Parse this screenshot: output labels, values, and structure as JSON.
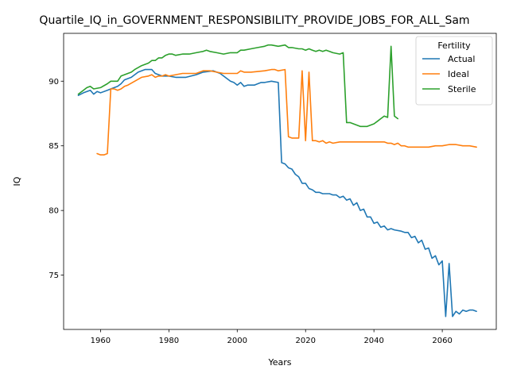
{
  "chart_data": {
    "type": "line",
    "title": "Quartile_IQ_in_GOVERNMENT_RESPONSIBILITY_PROVIDE_JOBS_FOR_ALL_Sam",
    "xlabel": "Years",
    "ylabel": "IQ",
    "xlim": [
      1949.2,
      2075.8
    ],
    "ylim": [
      70.8,
      93.7
    ],
    "x_ticks": [
      "1960",
      "1980",
      "2000",
      "2020",
      "2040",
      "2060"
    ],
    "y_ticks": [
      "75",
      "80",
      "85",
      "90"
    ],
    "x_tick_values": [
      1960,
      1980,
      2000,
      2020,
      2040,
      2060
    ],
    "y_tick_values": [
      75,
      80,
      85,
      90
    ],
    "grid": false,
    "legend": {
      "title": "Fertility",
      "position": "top-right"
    },
    "series": [
      {
        "name": "Actual",
        "color": "#1f77b4",
        "points": [
          [
            1953.5,
            88.9
          ],
          [
            1955,
            89.1
          ],
          [
            1957,
            89.3
          ],
          [
            1958,
            89.0
          ],
          [
            1959,
            89.2
          ],
          [
            1960,
            89.1
          ],
          [
            1962,
            89.3
          ],
          [
            1963,
            89.4
          ],
          [
            1965,
            89.6
          ],
          [
            1966,
            89.8
          ],
          [
            1967,
            90.1
          ],
          [
            1968,
            90.2
          ],
          [
            1969,
            90.3
          ],
          [
            1970,
            90.5
          ],
          [
            1971,
            90.7
          ],
          [
            1972,
            90.8
          ],
          [
            1973,
            90.9
          ],
          [
            1975,
            90.9
          ],
          [
            1976,
            90.6
          ],
          [
            1977,
            90.5
          ],
          [
            1978,
            90.4
          ],
          [
            1980,
            90.4
          ],
          [
            1982,
            90.3
          ],
          [
            1985,
            90.3
          ],
          [
            1988,
            90.5
          ],
          [
            1990,
            90.7
          ],
          [
            1993,
            90.8
          ],
          [
            1995,
            90.6
          ],
          [
            1996,
            90.4
          ],
          [
            1997,
            90.2
          ],
          [
            1998,
            90.0
          ],
          [
            1999,
            89.9
          ],
          [
            2000,
            89.7
          ],
          [
            2001,
            89.9
          ],
          [
            2002,
            89.6
          ],
          [
            2003,
            89.7
          ],
          [
            2005,
            89.7
          ],
          [
            2006,
            89.8
          ],
          [
            2007,
            89.9
          ],
          [
            2008,
            89.9
          ],
          [
            2010,
            90.0
          ],
          [
            2012,
            89.9
          ],
          [
            2013,
            83.7
          ],
          [
            2014,
            83.6
          ],
          [
            2015,
            83.3
          ],
          [
            2016,
            83.2
          ],
          [
            2017,
            82.8
          ],
          [
            2018,
            82.6
          ],
          [
            2019,
            82.1
          ],
          [
            2020,
            82.1
          ],
          [
            2021,
            81.7
          ],
          [
            2022,
            81.6
          ],
          [
            2023,
            81.4
          ],
          [
            2024,
            81.4
          ],
          [
            2025,
            81.3
          ],
          [
            2027,
            81.3
          ],
          [
            2028,
            81.2
          ],
          [
            2029,
            81.2
          ],
          [
            2030,
            81.0
          ],
          [
            2031,
            81.1
          ],
          [
            2032,
            80.8
          ],
          [
            2033,
            80.9
          ],
          [
            2034,
            80.4
          ],
          [
            2035,
            80.6
          ],
          [
            2036,
            80.0
          ],
          [
            2037,
            80.1
          ],
          [
            2038,
            79.5
          ],
          [
            2039,
            79.5
          ],
          [
            2040,
            79.0
          ],
          [
            2041,
            79.1
          ],
          [
            2042,
            78.7
          ],
          [
            2043,
            78.8
          ],
          [
            2044,
            78.5
          ],
          [
            2045,
            78.6
          ],
          [
            2046,
            78.5
          ],
          [
            2048,
            78.4
          ],
          [
            2049,
            78.3
          ],
          [
            2050,
            78.3
          ],
          [
            2051,
            77.9
          ],
          [
            2052,
            78.0
          ],
          [
            2053,
            77.5
          ],
          [
            2054,
            77.7
          ],
          [
            2055,
            77.0
          ],
          [
            2056,
            77.1
          ],
          [
            2057,
            76.3
          ],
          [
            2058,
            76.5
          ],
          [
            2059,
            75.8
          ],
          [
            2060,
            76.1
          ],
          [
            2061,
            71.8
          ],
          [
            2062,
            75.9
          ],
          [
            2063,
            71.8
          ],
          [
            2064,
            72.2
          ],
          [
            2065,
            72.0
          ],
          [
            2066,
            72.3
          ],
          [
            2067,
            72.2
          ],
          [
            2068,
            72.3
          ],
          [
            2069,
            72.3
          ],
          [
            2070,
            72.2
          ]
        ]
      },
      {
        "name": "Ideal",
        "color": "#ff7f0e",
        "points": [
          [
            1959,
            84.4
          ],
          [
            1960,
            84.3
          ],
          [
            1961,
            84.3
          ],
          [
            1962,
            84.4
          ],
          [
            1963,
            89.4
          ],
          [
            1964,
            89.4
          ],
          [
            1965,
            89.3
          ],
          [
            1966,
            89.4
          ],
          [
            1967,
            89.6
          ],
          [
            1968,
            89.7
          ],
          [
            1970,
            90.0
          ],
          [
            1972,
            90.3
          ],
          [
            1974,
            90.4
          ],
          [
            1975,
            90.5
          ],
          [
            1976,
            90.3
          ],
          [
            1977,
            90.4
          ],
          [
            1978,
            90.4
          ],
          [
            1979,
            90.5
          ],
          [
            1980,
            90.4
          ],
          [
            1982,
            90.5
          ],
          [
            1984,
            90.6
          ],
          [
            1988,
            90.6
          ],
          [
            1990,
            90.8
          ],
          [
            1992,
            90.8
          ],
          [
            1994,
            90.7
          ],
          [
            1996,
            90.6
          ],
          [
            1998,
            90.6
          ],
          [
            2000,
            90.6
          ],
          [
            2001,
            90.8
          ],
          [
            2002,
            90.7
          ],
          [
            2004,
            90.7
          ],
          [
            2008,
            90.8
          ],
          [
            2010,
            90.9
          ],
          [
            2011,
            90.9
          ],
          [
            2012,
            90.8
          ],
          [
            2014,
            90.9
          ],
          [
            2015,
            85.7
          ],
          [
            2016,
            85.6
          ],
          [
            2018,
            85.6
          ],
          [
            2019,
            90.8
          ],
          [
            2020,
            85.4
          ],
          [
            2021,
            90.7
          ],
          [
            2022,
            85.4
          ],
          [
            2023,
            85.4
          ],
          [
            2024,
            85.3
          ],
          [
            2025,
            85.4
          ],
          [
            2026,
            85.2
          ],
          [
            2027,
            85.3
          ],
          [
            2028,
            85.2
          ],
          [
            2030,
            85.3
          ],
          [
            2032,
            85.3
          ],
          [
            2034,
            85.3
          ],
          [
            2036,
            85.3
          ],
          [
            2040,
            85.3
          ],
          [
            2043,
            85.3
          ],
          [
            2044,
            85.2
          ],
          [
            2045,
            85.2
          ],
          [
            2046,
            85.1
          ],
          [
            2047,
            85.2
          ],
          [
            2048,
            85.0
          ],
          [
            2049,
            85.0
          ],
          [
            2050,
            84.9
          ],
          [
            2052,
            84.9
          ],
          [
            2054,
            84.9
          ],
          [
            2056,
            84.9
          ],
          [
            2058,
            85.0
          ],
          [
            2060,
            85.0
          ],
          [
            2062,
            85.1
          ],
          [
            2064,
            85.1
          ],
          [
            2066,
            85.0
          ],
          [
            2068,
            85.0
          ],
          [
            2070,
            84.9
          ]
        ]
      },
      {
        "name": "Sterile",
        "color": "#2ca02c",
        "points": [
          [
            1953.5,
            89.0
          ],
          [
            1955,
            89.3
          ],
          [
            1956,
            89.5
          ],
          [
            1957,
            89.6
          ],
          [
            1958,
            89.4
          ],
          [
            1960,
            89.5
          ],
          [
            1962,
            89.8
          ],
          [
            1963,
            90.0
          ],
          [
            1965,
            90.0
          ],
          [
            1966,
            90.4
          ],
          [
            1967,
            90.5
          ],
          [
            1969,
            90.7
          ],
          [
            1970,
            90.9
          ],
          [
            1972,
            91.2
          ],
          [
            1974,
            91.4
          ],
          [
            1975,
            91.6
          ],
          [
            1976,
            91.6
          ],
          [
            1977,
            91.8
          ],
          [
            1978,
            91.8
          ],
          [
            1979,
            92.0
          ],
          [
            1980,
            92.1
          ],
          [
            1981,
            92.1
          ],
          [
            1982,
            92.0
          ],
          [
            1984,
            92.1
          ],
          [
            1986,
            92.1
          ],
          [
            1988,
            92.2
          ],
          [
            1990,
            92.3
          ],
          [
            1991,
            92.4
          ],
          [
            1992,
            92.3
          ],
          [
            1994,
            92.2
          ],
          [
            1996,
            92.1
          ],
          [
            1998,
            92.2
          ],
          [
            2000,
            92.2
          ],
          [
            2001,
            92.4
          ],
          [
            2002,
            92.4
          ],
          [
            2004,
            92.5
          ],
          [
            2006,
            92.6
          ],
          [
            2008,
            92.7
          ],
          [
            2009,
            92.8
          ],
          [
            2010,
            92.8
          ],
          [
            2012,
            92.7
          ],
          [
            2014,
            92.8
          ],
          [
            2015,
            92.6
          ],
          [
            2016,
            92.6
          ],
          [
            2018,
            92.5
          ],
          [
            2019,
            92.5
          ],
          [
            2020,
            92.4
          ],
          [
            2021,
            92.5
          ],
          [
            2022,
            92.4
          ],
          [
            2023,
            92.3
          ],
          [
            2024,
            92.4
          ],
          [
            2025,
            92.3
          ],
          [
            2026,
            92.4
          ],
          [
            2027,
            92.3
          ],
          [
            2028,
            92.2
          ],
          [
            2030,
            92.1
          ],
          [
            2031,
            92.2
          ],
          [
            2032,
            86.8
          ],
          [
            2033,
            86.8
          ],
          [
            2034,
            86.7
          ],
          [
            2035,
            86.6
          ],
          [
            2036,
            86.5
          ],
          [
            2038,
            86.5
          ],
          [
            2039,
            86.6
          ],
          [
            2040,
            86.7
          ],
          [
            2041,
            86.9
          ],
          [
            2042,
            87.1
          ],
          [
            2043,
            87.3
          ],
          [
            2044,
            87.2
          ],
          [
            2045,
            92.7
          ],
          [
            2046,
            87.3
          ],
          [
            2047,
            87.1
          ]
        ]
      }
    ]
  }
}
